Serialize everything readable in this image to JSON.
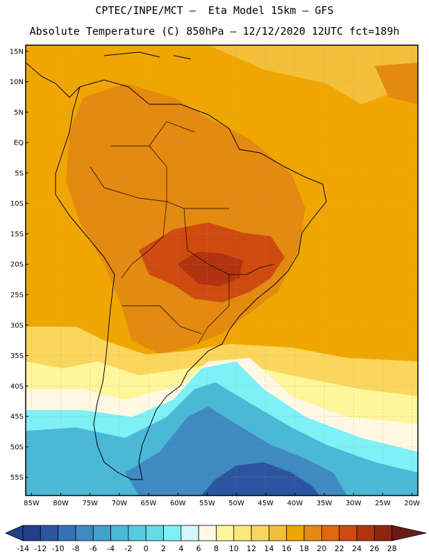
{
  "header": {
    "line1": "CPTEC/INPE/MCT –  Eta Model 15km – GFS",
    "line2": "Absolute Temperature (C) 850hPa – 12/12/2020 12UTC fct=189h"
  },
  "map": {
    "lat_labels": [
      "15N",
      "10N",
      "5N",
      "EQ",
      "5S",
      "10S",
      "15S",
      "20S",
      "25S",
      "30S",
      "35S",
      "40S",
      "45S",
      "50S",
      "55S"
    ],
    "lon_labels": [
      "85W",
      "80W",
      "75W",
      "70W",
      "65W",
      "60W",
      "55W",
      "50W",
      "45W",
      "40W",
      "35W",
      "30W",
      "25W",
      "20W"
    ],
    "lat_range": [
      -58,
      16
    ],
    "lon_range": [
      -86,
      -19
    ]
  },
  "colorbar": {
    "tick_labels": [
      "-14",
      "-12",
      "-10",
      "-8",
      "-6",
      "-4",
      "-2",
      "0",
      "2",
      "4",
      "6",
      "8",
      "10",
      "12",
      "14",
      "16",
      "18",
      "20",
      "22",
      "24",
      "26",
      "28"
    ],
    "colors": [
      "#223f8a",
      "#2b55a0",
      "#3572b3",
      "#3f8ac0",
      "#44a0cc",
      "#4bb8d8",
      "#55cbe0",
      "#62dceb",
      "#7ff0f5",
      "#d5f6fb",
      "#fff9e3",
      "#fff59a",
      "#ffe87a",
      "#fbd65c",
      "#f4c03a",
      "#f0a600",
      "#e48a10",
      "#e06710",
      "#cf4a0f",
      "#b1330f",
      "#8f2510",
      "#6b1a1a"
    ]
  }
}
